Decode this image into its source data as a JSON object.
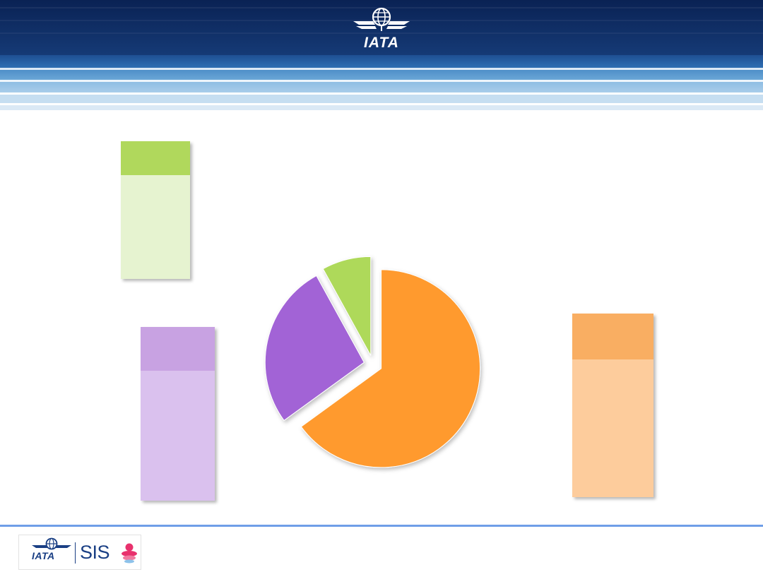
{
  "header": {
    "brand": "IATA",
    "logo_icon": "globe-with-wings-icon",
    "colors": {
      "navy": "#0d2a5c",
      "mid_blue": "#2a6fb1",
      "light_blue": "#b8d6ec"
    }
  },
  "chart_data": {
    "type": "pie",
    "title": "",
    "exploded": true,
    "slices": [
      {
        "name": "",
        "value": 65,
        "color": "#ff9a2e",
        "callout_cap": "#f9ae62",
        "callout_body": "#fdcc9c"
      },
      {
        "name": "",
        "value": 27,
        "color": "#a263d6",
        "callout_cap": "#c8a2e2",
        "callout_body": "#dac1ee"
      },
      {
        "name": "",
        "value": 8,
        "color": "#aed95a",
        "callout_cap": "#b0d85c",
        "callout_body": "#e6f3d0"
      }
    ]
  },
  "footer": {
    "iata_label": "IATA",
    "sis_label": "SIS",
    "logo_icons": [
      "iata-globe-icon",
      "sis-swirl-icon"
    ],
    "rule_color": "#6f9ee8"
  }
}
